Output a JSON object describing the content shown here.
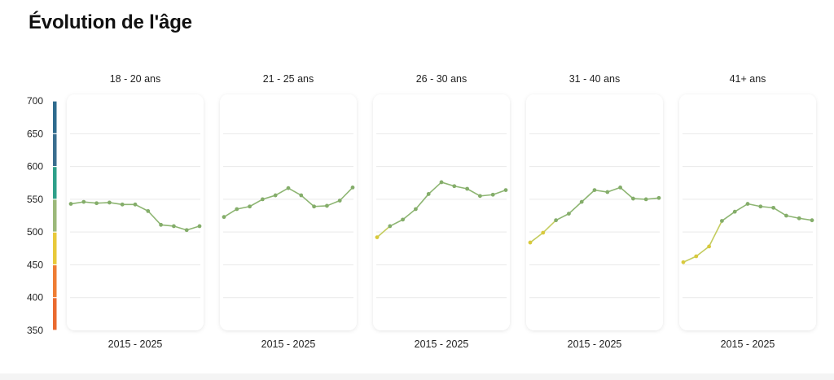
{
  "title": "Évolution de l'âge",
  "chart_data": {
    "type": "line",
    "y_ticks": [
      "700",
      "650",
      "600",
      "550",
      "500",
      "450",
      "400",
      "350"
    ],
    "ylim": [
      350,
      710
    ],
    "color_scale": [
      {
        "from": 650,
        "to": 700,
        "color": "#2f6b8e"
      },
      {
        "from": 600,
        "to": 650,
        "color": "#3a6e8f"
      },
      {
        "from": 550,
        "to": 600,
        "color": "#2fa08a"
      },
      {
        "from": 500,
        "to": 550,
        "color": "#9cb97a"
      },
      {
        "from": 450,
        "to": 500,
        "color": "#e8c93a"
      },
      {
        "from": 400,
        "to": 450,
        "color": "#ef7d34"
      },
      {
        "from": 350,
        "to": 400,
        "color": "#ea6a30"
      }
    ],
    "panels": [
      {
        "title": "18 - 20 ans",
        "xlabel": "2015 - 2025",
        "values": [
          543,
          546,
          544,
          545,
          542,
          542,
          532,
          511,
          509,
          503,
          509
        ]
      },
      {
        "title": "21 - 25 ans",
        "xlabel": "2015 - 2025",
        "values": [
          523,
          535,
          539,
          550,
          556,
          567,
          556,
          539,
          540,
          548,
          568
        ]
      },
      {
        "title": "26 - 30 ans",
        "xlabel": "2015 - 2025",
        "values": [
          492,
          509,
          519,
          535,
          558,
          576,
          570,
          566,
          555,
          557,
          564
        ]
      },
      {
        "title": "31 - 40 ans",
        "xlabel": "2015 - 2025",
        "values": [
          484,
          499,
          518,
          528,
          546,
          564,
          561,
          568,
          551,
          550,
          552
        ]
      },
      {
        "title": "41+ ans",
        "xlabel": "2015 - 2025",
        "values": [
          454,
          463,
          478,
          517,
          531,
          543,
          539,
          537,
          525,
          521,
          518
        ]
      }
    ]
  }
}
